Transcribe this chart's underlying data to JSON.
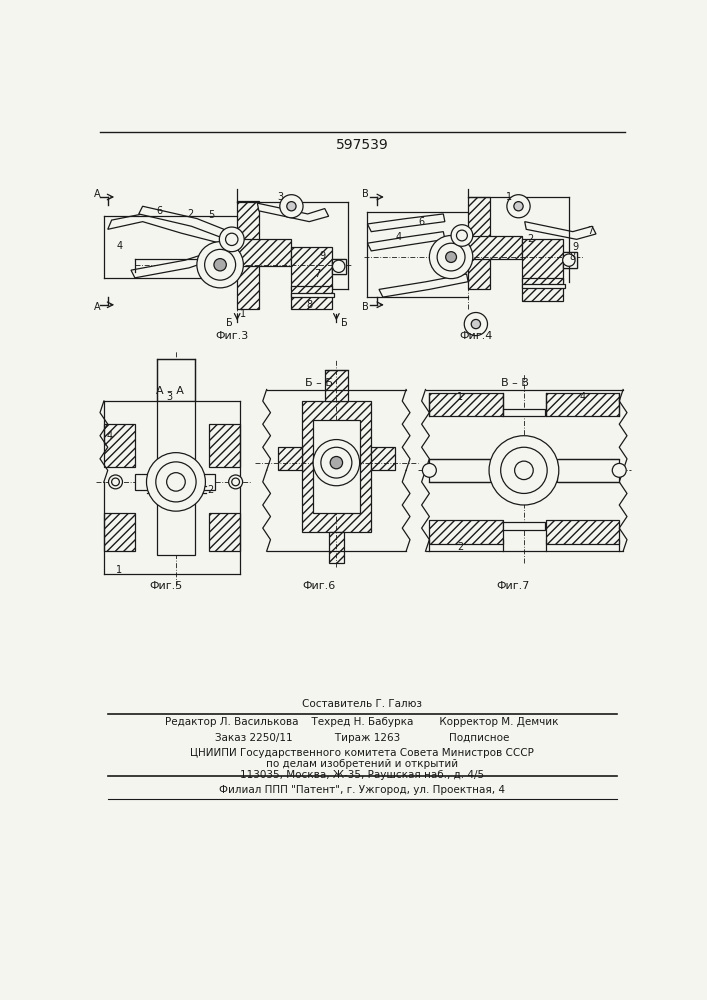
{
  "title": "597539",
  "bg_color": "#f5f5f0",
  "line_color": "#1a1a1a",
  "footer_lines": [
    "Составитель Г. Галюз",
    "Редактор Л. Василькова    Техред Н. Бабурка        Корректор М. Демчик",
    "Заказ 2250/11             Тираж 1263               Подписное",
    "ЦНИИПИ Государственного комитета Совета Министров СССР",
    "по делам изобретений и открытий",
    "113035, Москва, Ж-35, Раушская наб., д. 4/5",
    "Филиал ППП \"Патент\", г. Ужгород, ул. Проектная, 4"
  ],
  "fig3_label": "Фиг.3",
  "fig4_label": "Фиг.4",
  "fig5_label": "Фиг.5",
  "fig6_label": "Фиг.6",
  "fig7_label": "Фиг.7"
}
